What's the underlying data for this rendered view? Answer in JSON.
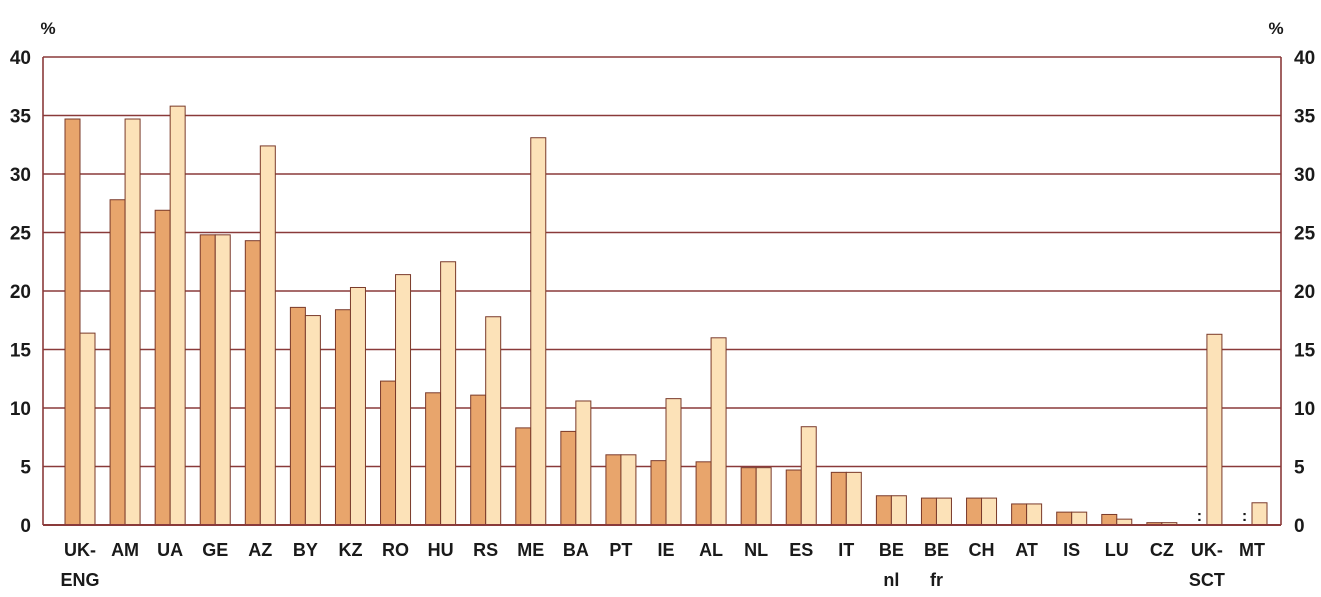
{
  "chart_data": {
    "type": "bar",
    "title": "",
    "xlabel": "",
    "ylabel": "%",
    "ylabel_right": "%",
    "ylim": [
      0,
      40
    ],
    "yticks": [
      0,
      5,
      10,
      15,
      20,
      25,
      30,
      35,
      40
    ],
    "grid": true,
    "legend": "none",
    "categories": [
      "UK-ENG",
      "AM",
      "UA",
      "GE",
      "AZ",
      "BY",
      "KZ",
      "RO",
      "HU",
      "RS",
      "ME",
      "BA",
      "PT",
      "IE",
      "AL",
      "NL",
      "ES",
      "IT",
      "BE nl",
      "BE fr",
      "CH",
      "AT",
      "IS",
      "LU",
      "CZ",
      "UK-SCT",
      "MT"
    ],
    "category_lines": [
      [
        "UK-",
        "ENG"
      ],
      [
        "AM"
      ],
      [
        "UA"
      ],
      [
        "GE"
      ],
      [
        "AZ"
      ],
      [
        "BY"
      ],
      [
        "KZ"
      ],
      [
        "RO"
      ],
      [
        "HU"
      ],
      [
        "RS"
      ],
      [
        "ME"
      ],
      [
        "BA"
      ],
      [
        "PT"
      ],
      [
        "IE"
      ],
      [
        "AL"
      ],
      [
        "NL"
      ],
      [
        "ES"
      ],
      [
        "IT"
      ],
      [
        "BE",
        "nl"
      ],
      [
        "BE",
        "fr"
      ],
      [
        "CH"
      ],
      [
        "AT"
      ],
      [
        "IS"
      ],
      [
        "LU"
      ],
      [
        "CZ"
      ],
      [
        "UK-",
        "SCT"
      ],
      [
        "MT"
      ]
    ],
    "missing_marker": ":",
    "series": [
      {
        "color": "#E8A56C",
        "values": [
          34.7,
          27.8,
          26.9,
          24.8,
          24.3,
          18.6,
          18.4,
          12.3,
          11.3,
          11.1,
          8.3,
          8.0,
          6.0,
          5.5,
          5.4,
          4.9,
          4.7,
          4.5,
          2.5,
          2.3,
          2.3,
          1.8,
          1.1,
          0.9,
          0.2,
          null,
          null
        ]
      },
      {
        "color": "#FCE2B8",
        "values": [
          16.4,
          34.7,
          35.8,
          24.8,
          32.4,
          17.9,
          20.3,
          21.4,
          22.5,
          17.8,
          33.1,
          10.6,
          6.0,
          10.8,
          16.0,
          4.9,
          8.4,
          4.5,
          2.5,
          2.3,
          2.3,
          1.8,
          1.1,
          0.5,
          0.2,
          16.3,
          1.9
        ]
      }
    ]
  }
}
